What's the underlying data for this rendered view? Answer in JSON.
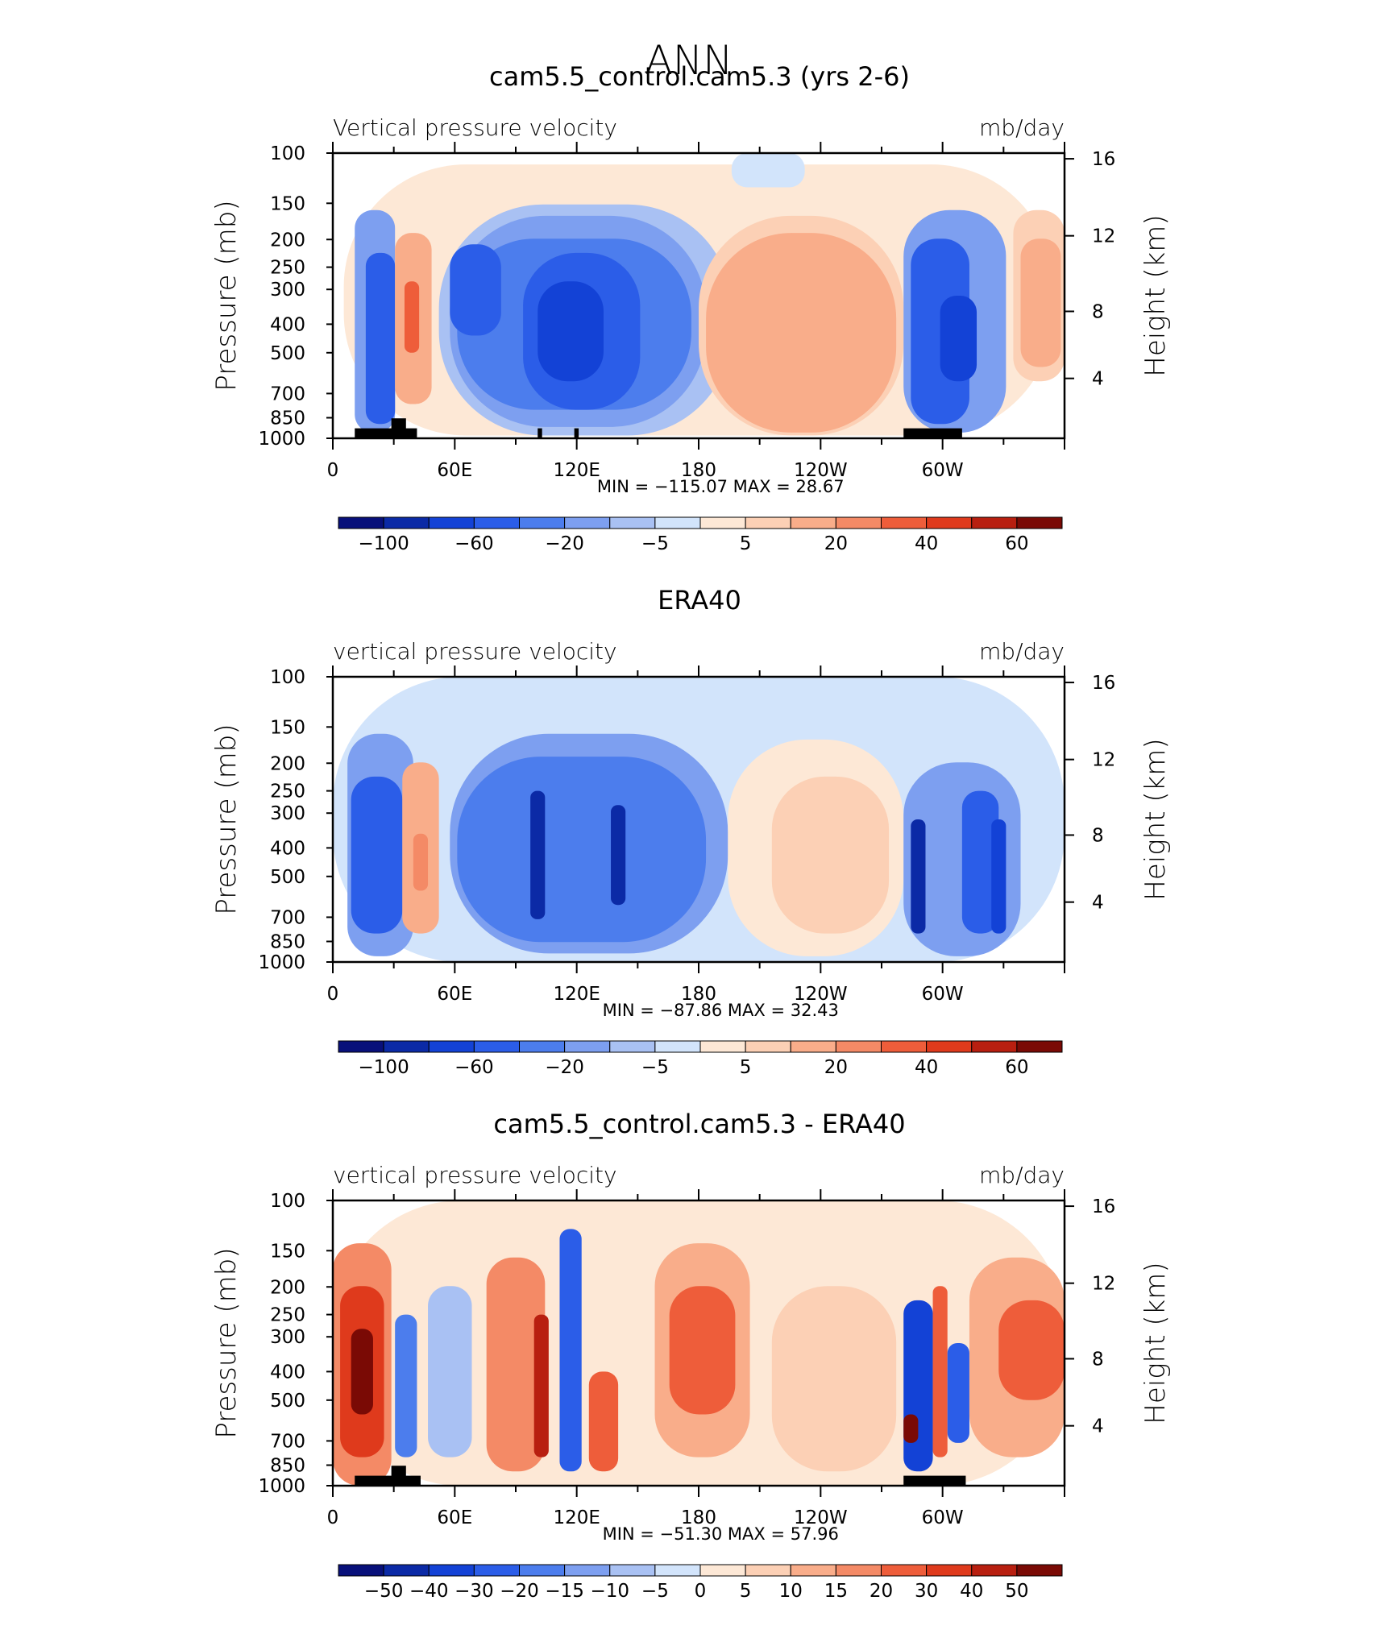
{
  "page": {
    "title": "ANN"
  },
  "palettes": {
    "full": [
      "#08107a",
      "#0b2aa6",
      "#1342d6",
      "#2b5de8",
      "#4c7ded",
      "#7d9ff0",
      "#a9c1f3",
      "#d2e4fb",
      "#fde8d6",
      "#fcd0b5",
      "#f9ad8a",
      "#f48a66",
      "#ee5d3a",
      "#df3a1c",
      "#b81f10",
      "#7a0a05"
    ],
    "diff": [
      "#08107a",
      "#0b2aa6",
      "#1342d6",
      "#2b5de8",
      "#4c7ded",
      "#7d9ff0",
      "#a9c1f3",
      "#d2e4fb",
      "#fde8d6",
      "#fcd0b5",
      "#f9ad8a",
      "#f48a66",
      "#ee5d3a",
      "#df3a1c",
      "#b81f10",
      "#7a0a05"
    ]
  },
  "chart_data": [
    {
      "type": "heatmap",
      "title": "cam5.5_control.cam5.3 (yrs 2-6)",
      "left_label": "Vertical pressure velocity",
      "right_label": "mb/day",
      "ylabel": "Pressure (mb)",
      "y2label": "Height (km)",
      "x_ticks": [
        "0",
        "60E",
        "120E",
        "180",
        "120W",
        "60W"
      ],
      "y_ticks": [
        "100",
        "150",
        "200",
        "250",
        "300",
        "400",
        "500",
        "700",
        "850",
        "1000"
      ],
      "y2_ticks": [
        "16",
        "12",
        "8",
        "4"
      ],
      "stats": "MIN = −115.07   MAX =   28.67",
      "min": -115.07,
      "max": 28.67,
      "colorbar_labels": [
        "−100",
        "−60",
        "−20",
        "−5",
        "5",
        "20",
        "40",
        "60"
      ],
      "palette": "full"
    },
    {
      "type": "heatmap",
      "title": "ERA40",
      "left_label": "vertical pressure velocity",
      "right_label": "mb/day",
      "ylabel": "Pressure (mb)",
      "y2label": "Height (km)",
      "x_ticks": [
        "0",
        "60E",
        "120E",
        "180",
        "120W",
        "60W"
      ],
      "y_ticks": [
        "100",
        "150",
        "200",
        "250",
        "300",
        "400",
        "500",
        "700",
        "850",
        "1000"
      ],
      "y2_ticks": [
        "16",
        "12",
        "8",
        "4"
      ],
      "stats": "MIN = −87.86   MAX =   32.43",
      "min": -87.86,
      "max": 32.43,
      "colorbar_labels": [
        "−100",
        "−60",
        "−20",
        "−5",
        "5",
        "20",
        "40",
        "60"
      ],
      "palette": "full"
    },
    {
      "type": "heatmap",
      "title": "cam5.5_control.cam5.3 - ERA40",
      "left_label": "vertical pressure velocity",
      "right_label": "mb/day",
      "ylabel": "Pressure (mb)",
      "y2label": "Height (km)",
      "x_ticks": [
        "0",
        "60E",
        "120E",
        "180",
        "120W",
        "60W"
      ],
      "y_ticks": [
        "100",
        "150",
        "200",
        "250",
        "300",
        "400",
        "500",
        "700",
        "850",
        "1000"
      ],
      "y2_ticks": [
        "16",
        "12",
        "8",
        "4"
      ],
      "stats": "MIN = −51.30   MAX =   57.96",
      "min": -51.3,
      "max": 57.96,
      "colorbar_labels": [
        "−50",
        "−40",
        "−30",
        "−20",
        "−15",
        "−10",
        "−5",
        "0",
        "5",
        "10",
        "15",
        "20",
        "30",
        "40",
        "50"
      ],
      "palette": "diff"
    }
  ]
}
